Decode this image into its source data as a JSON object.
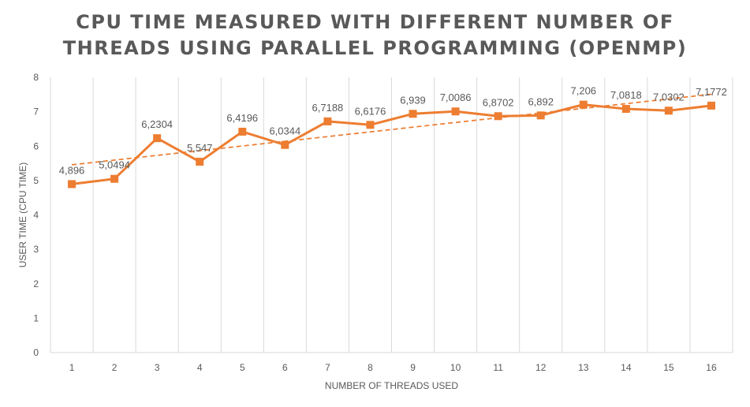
{
  "chart": {
    "title_line1": "CPU TIME MEASURED WITH DIFFERENT NUMBER OF",
    "title_line2": "THREADS USING PARALLEL PROGRAMMING (OPENMP)"
  },
  "chart_data": {
    "type": "line",
    "title": "CPU TIME MEASURED WITH DIFFERENT NUMBER OF THREADS USING PARALLEL PROGRAMMING (OPENMP)",
    "xlabel": "NUMBER OF THREADS USED",
    "ylabel": "USER TIME (CPU TIME)",
    "categories": [
      "1",
      "2",
      "3",
      "4",
      "5",
      "6",
      "7",
      "8",
      "9",
      "10",
      "11",
      "12",
      "13",
      "14",
      "15",
      "16"
    ],
    "ylim": [
      0,
      8
    ],
    "yticks": [
      "0",
      "1",
      "2",
      "3",
      "4",
      "5",
      "6",
      "7",
      "8"
    ],
    "grid": "vertical",
    "legend": "none",
    "trendline": "linear, dashed",
    "series": [
      {
        "values": [
          4.896,
          5.0494,
          6.2304,
          5.547,
          6.4196,
          6.0344,
          6.7188,
          6.6176,
          6.939,
          7.0086,
          6.8702,
          6.892,
          7.206,
          7.0818,
          7.0302,
          7.1772
        ],
        "labels": [
          "4,896",
          "5,0494",
          "6,2304",
          "5,547",
          "6,4196",
          "6,0344",
          "6,7188",
          "6,6176",
          "6,939",
          "7,0086",
          "6,8702",
          "6,892",
          "7,206",
          "7,0818",
          "7,0302",
          "7,1772"
        ],
        "color": "#ED7D31"
      }
    ]
  }
}
